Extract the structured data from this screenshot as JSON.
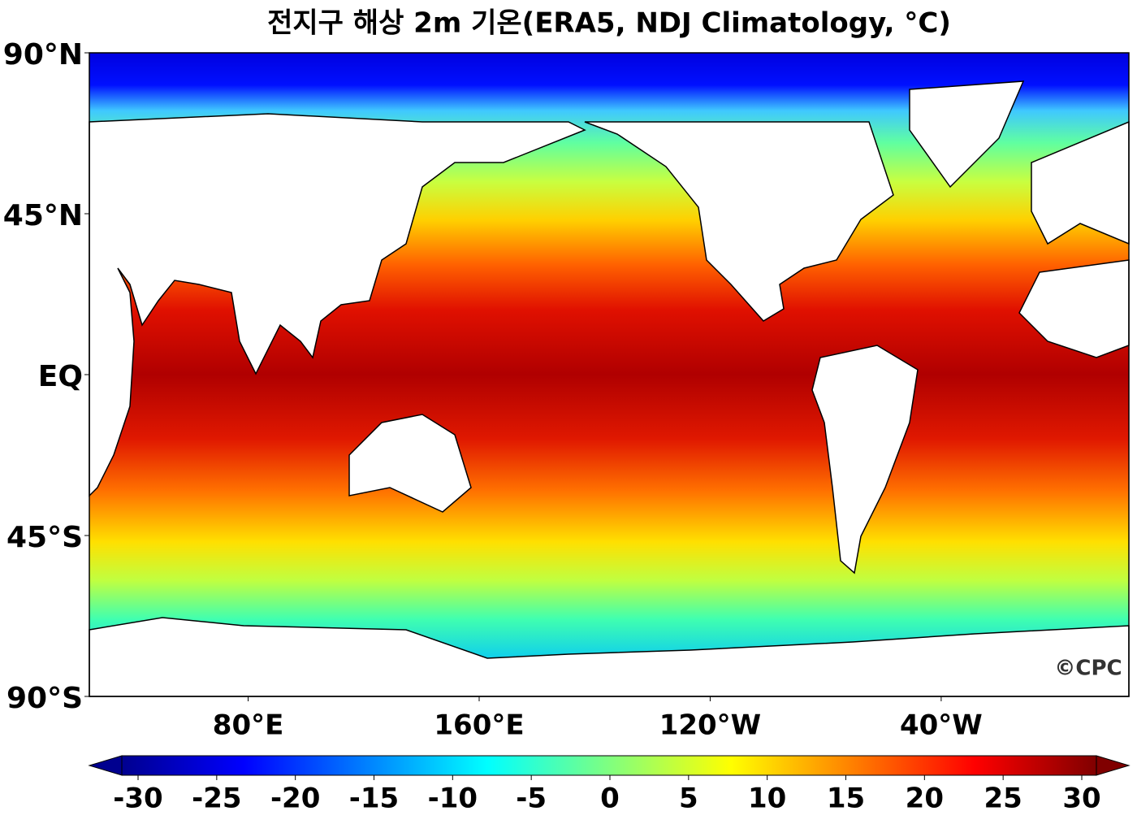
{
  "title": "전지구 해상 2m 기온(ERA5, NDJ Climatology, °C)",
  "map": {
    "lon_range": [
      25,
      385
    ],
    "lat_range": [
      -90,
      90
    ],
    "lat_ticks": [
      {
        "value": 90,
        "label": "90°N"
      },
      {
        "value": 45,
        "label": "45°N"
      },
      {
        "value": 0,
        "label": "EQ"
      },
      {
        "value": -45,
        "label": "45°S"
      },
      {
        "value": -90,
        "label": "90°S"
      }
    ],
    "lon_ticks": [
      {
        "value": 80,
        "label": "80°E"
      },
      {
        "value": 160,
        "label": "160°E"
      },
      {
        "value": 240,
        "label": "120°W"
      },
      {
        "value": 320,
        "label": "40°W"
      }
    ]
  },
  "colorbar": {
    "range": [
      -30,
      30
    ],
    "ticks": [
      -30,
      -25,
      -20,
      -15,
      -10,
      -5,
      0,
      5,
      10,
      15,
      20,
      25,
      30
    ]
  },
  "watermark": "©CPC"
}
